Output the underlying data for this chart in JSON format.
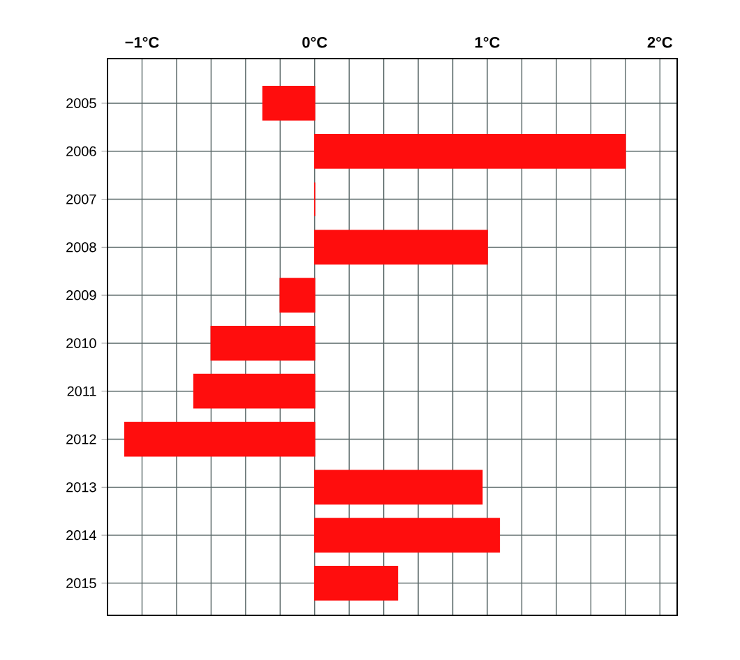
{
  "chart_data": {
    "type": "bar",
    "orientation": "horizontal",
    "categories": [
      "2005",
      "2006",
      "2007",
      "2008",
      "2009",
      "2010",
      "2011",
      "2012",
      "2013",
      "2014",
      "2015"
    ],
    "values": [
      -0.3,
      1.8,
      0,
      1.0,
      -0.2,
      -0.6,
      -0.7,
      -1.1,
      0.97,
      1.07,
      0.48
    ],
    "color": "#ff0d0d",
    "xlim": [
      -1.2,
      2.1
    ],
    "xticks": [
      {
        "value": -1,
        "label": "−1°C"
      },
      {
        "value": -0.8,
        "label": null
      },
      {
        "value": -0.6,
        "label": null
      },
      {
        "value": -0.4,
        "label": null
      },
      {
        "value": -0.2,
        "label": null
      },
      {
        "value": 0,
        "label": "0°C"
      },
      {
        "value": 0.2,
        "label": null
      },
      {
        "value": 0.4,
        "label": null
      },
      {
        "value": 0.6,
        "label": null
      },
      {
        "value": 0.8,
        "label": null
      },
      {
        "value": 1,
        "label": "1°C"
      },
      {
        "value": 1.2,
        "label": null
      },
      {
        "value": 1.4,
        "label": null
      },
      {
        "value": 1.6,
        "label": null
      },
      {
        "value": 1.8,
        "label": null
      },
      {
        "value": 2,
        "label": "2°C"
      }
    ],
    "grid": true
  }
}
